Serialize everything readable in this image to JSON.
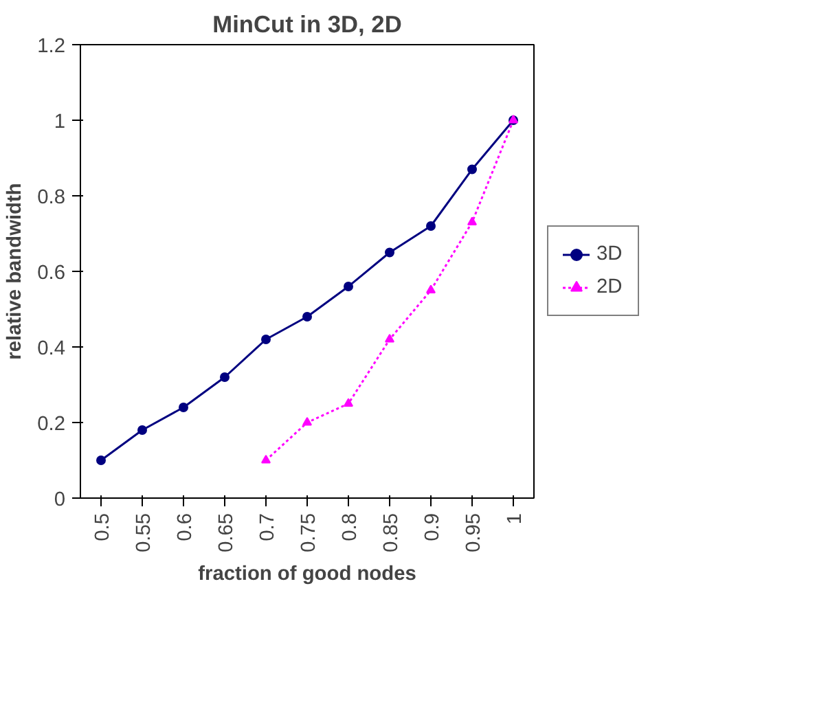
{
  "chart_data": {
    "type": "line",
    "title": "MinCut in 3D, 2D",
    "xlabel": "fraction of good nodes",
    "ylabel": "relative bandwidth",
    "categories": [
      "0.5",
      "0.55",
      "0.6",
      "0.65",
      "0.7",
      "0.75",
      "0.8",
      "0.85",
      "0.9",
      "0.95",
      "1"
    ],
    "series": [
      {
        "name": "3D",
        "color": "#000080",
        "marker": "circle",
        "line_style": "solid",
        "values": [
          0.1,
          0.18,
          0.24,
          0.32,
          0.42,
          0.48,
          0.56,
          0.65,
          0.72,
          0.87,
          1.0
        ]
      },
      {
        "name": "2D",
        "color": "#ff00ff",
        "marker": "triangle",
        "line_style": "dotted",
        "values": [
          null,
          null,
          null,
          null,
          0.1,
          0.2,
          0.25,
          0.42,
          0.55,
          0.73,
          1.0
        ]
      }
    ],
    "ylim": [
      0,
      1.2
    ],
    "yticks": [
      0,
      0.2,
      0.4,
      0.6,
      0.8,
      1,
      1.2
    ],
    "grid": false,
    "legend": "right"
  }
}
